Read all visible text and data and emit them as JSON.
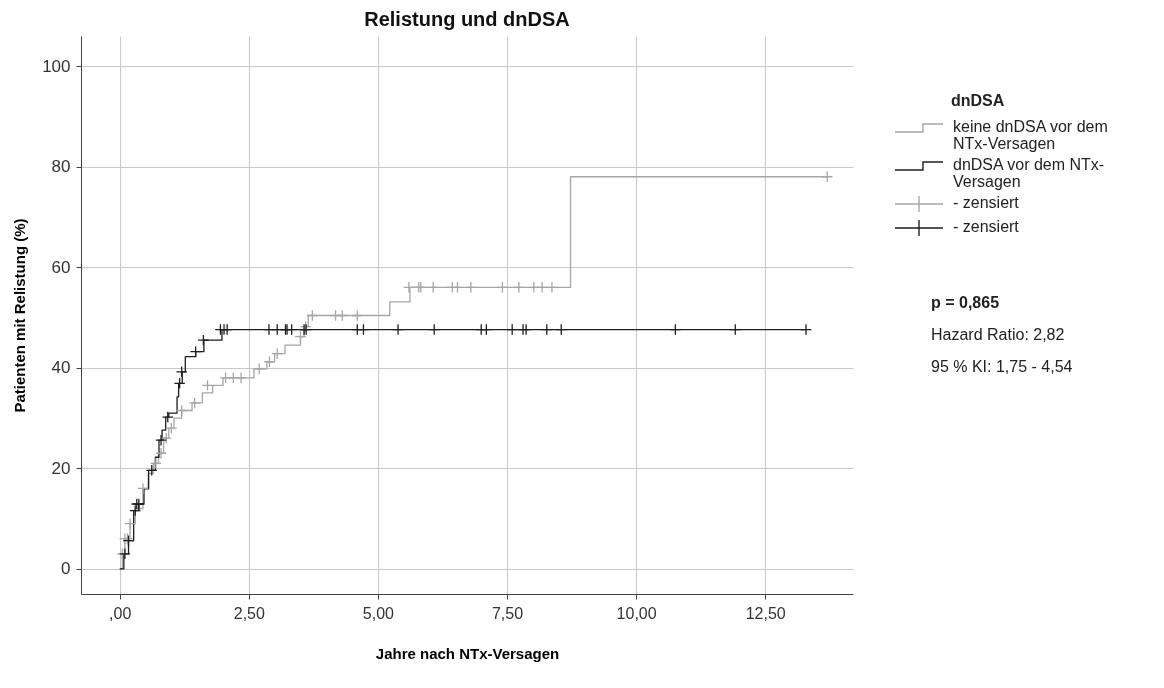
{
  "chart_data": {
    "type": "step",
    "title": "Relistung und dnDSA",
    "xlabel": "Jahre nach NTx-Versagen",
    "ylabel": "Patienten mit Relistung (%)",
    "legend_title": "dnDSA",
    "xlim": [
      -0.75,
      14.2
    ],
    "ylim": [
      -5,
      106
    ],
    "xticks": [
      {
        "value": 0,
        "label": ",00"
      },
      {
        "value": 2.5,
        "label": "2,50"
      },
      {
        "value": 5,
        "label": "5,00"
      },
      {
        "value": 7.5,
        "label": "7,50"
      },
      {
        "value": 10,
        "label": "10,00"
      },
      {
        "value": 12.5,
        "label": "12,50"
      }
    ],
    "yticks": [
      0,
      20,
      40,
      60,
      80,
      100
    ],
    "grid": true,
    "legend": "right",
    "series": [
      {
        "name": "keine dnDSA vor dem NTx-Versagen",
        "color": "#a6a6a6",
        "x": [
          0,
          0.05,
          0.1,
          0.2,
          0.3,
          0.45,
          0.55,
          0.65,
          0.75,
          0.85,
          0.95,
          1.05,
          1.2,
          1.4,
          1.6,
          1.8,
          2.0,
          2.6,
          2.85,
          3.0,
          3.2,
          3.5,
          3.57,
          3.65,
          5.23,
          5.62,
          8.73,
          13.7
        ],
        "values": [
          0,
          3,
          6,
          9,
          12,
          16,
          19,
          21,
          23,
          26,
          28,
          30,
          31.5,
          33,
          35,
          36.5,
          38,
          39.8,
          41.2,
          42.8,
          44.5,
          46.2,
          48.2,
          50.4,
          53.1,
          56,
          78,
          78
        ]
      },
      {
        "name": "dnDSA vor dem NTx-Versagen",
        "color": "#1e1e1e",
        "x": [
          0,
          0.08,
          0.17,
          0.27,
          0.37,
          0.47,
          0.56,
          0.69,
          0.76,
          0.82,
          0.89,
          0.95,
          1.11,
          1.14,
          1.21,
          1.27,
          1.47,
          1.63,
          1.98,
          13.29
        ],
        "values": [
          0,
          3,
          5.6,
          11.6,
          12.9,
          15.9,
          19.6,
          22.2,
          25.6,
          27.6,
          30.2,
          31,
          34.2,
          36.9,
          39.2,
          42.2,
          43.2,
          45.5,
          47.6,
          47.6
        ]
      },
      {
        "name": "- zensiert",
        "color": "#a6a6a6",
        "type": "scatter",
        "marker": "cross",
        "x": [
          0.05,
          0.1,
          0.15,
          0.2,
          0.3,
          0.45,
          0.55,
          0.6,
          0.7,
          0.8,
          0.9,
          1.0,
          1.2,
          1.45,
          1.7,
          2.05,
          2.2,
          2.35,
          2.7,
          2.9,
          3.05,
          3.5,
          3.6,
          3.73,
          4.18,
          4.31,
          4.6,
          5.6,
          5.79,
          5.83,
          6.07,
          6.44,
          6.54,
          6.8,
          7.41,
          7.73,
          8.02,
          8.18,
          8.37,
          13.7
        ],
        "values": [
          3,
          6,
          6,
          9,
          null,
          16,
          null,
          null,
          21,
          23,
          26,
          28,
          31.5,
          33,
          36.5,
          38,
          38,
          38,
          39.8,
          41.2,
          42.8,
          46.2,
          48.2,
          50.4,
          50.4,
          50.4,
          50.4,
          56,
          56,
          56,
          56,
          56,
          56,
          56,
          56,
          56,
          56,
          56,
          56,
          78
        ]
      },
      {
        "name": "- zensiert",
        "color": "#1e1e1e",
        "type": "scatter",
        "marker": "cross",
        "x": [
          0.1,
          0.17,
          0.3,
          0.33,
          0.37,
          0.62,
          0.8,
          0.93,
          1.16,
          1.2,
          1.47,
          1.62,
          1.95,
          2.02,
          2.08,
          2.89,
          3.05,
          3.21,
          3.24,
          3.33,
          3.57,
          3.61,
          4.6,
          4.72,
          5.39,
          6.09,
          7.0,
          7.1,
          7.6,
          7.81,
          7.87,
          8.27,
          8.55,
          10.76,
          11.92,
          13.29
        ],
        "values": [
          3,
          5.6,
          11.6,
          12.9,
          12.9,
          19.6,
          25.6,
          30.2,
          36.9,
          39.2,
          43.2,
          45.5,
          47.6,
          47.6,
          47.6,
          47.6,
          47.6,
          47.6,
          47.6,
          47.6,
          47.6,
          47.6,
          47.6,
          47.6,
          47.6,
          47.6,
          47.6,
          47.6,
          47.6,
          47.6,
          47.6,
          47.6,
          47.6,
          47.6,
          47.6,
          47.6
        ]
      }
    ],
    "annotations": [
      "p = 0,865",
      "Hazard Ratio: 2,82",
      "95 % KI: 1,75 - 4,54"
    ]
  }
}
